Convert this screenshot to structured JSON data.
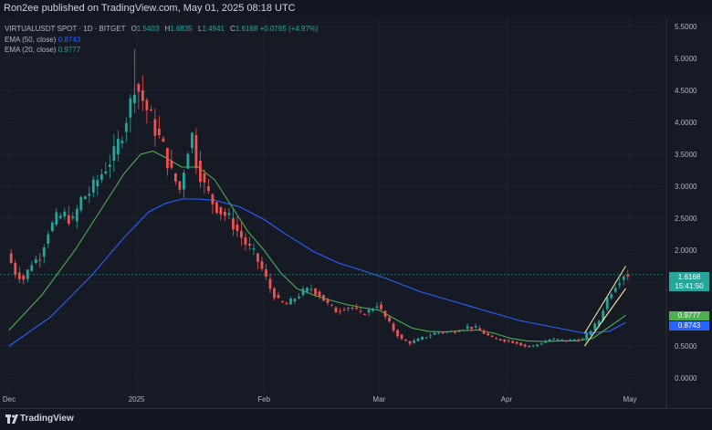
{
  "header": {
    "published_text": "Ron2ee published on TradingView.com, May 01, 2025 08:18 UTC"
  },
  "legend": {
    "symbol": "VIRTUALUSDT SPOT · 1D · BITGET",
    "ohlc": [
      {
        "k": "O",
        "v": "1.5403"
      },
      {
        "k": "H",
        "v": "1.6835"
      },
      {
        "k": "L",
        "v": "1.4941"
      },
      {
        "k": "C",
        "v": "1.6168"
      }
    ],
    "change": "+0.0765 (+4.97%)",
    "ema50_label": "EMA (50, close)",
    "ema50_value": "0.8743",
    "ema20_label": "EMA (20, close)",
    "ema20_value": "0.9777"
  },
  "badges": {
    "price": "1.6168",
    "countdown": "15:41:50",
    "ema20": "0.9777",
    "ema50": "0.8743"
  },
  "footer": {
    "brand": "TradingView"
  },
  "colors": {
    "up": "#26a69a",
    "down": "#ef5350",
    "ema20": "#4caf50",
    "ema50": "#2962ff",
    "channel": "#f5e6a3",
    "background": "#161a25"
  },
  "chart_data": {
    "type": "candlestick",
    "y_ticks": [
      "5.5000",
      "5.0000",
      "4.5000",
      "4.0000",
      "3.5000",
      "3.0000",
      "2.5000",
      "2.0000",
      "1.5000",
      "1.0000",
      "0.5000",
      "0.0000"
    ],
    "ylim": [
      0,
      5.5
    ],
    "x_ticks": [
      {
        "label": "Dec",
        "day": 0
      },
      {
        "label": "2025",
        "day": 31
      },
      {
        "label": "Feb",
        "day": 62
      },
      {
        "label": "Mar",
        "day": 90
      },
      {
        "label": "Apr",
        "day": 121
      },
      {
        "label": "May",
        "day": 151
      }
    ],
    "close_path": [
      [
        0,
        1.95
      ],
      [
        2,
        1.65
      ],
      [
        4,
        1.55
      ],
      [
        6,
        1.8
      ],
      [
        8,
        1.9
      ],
      [
        10,
        2.3
      ],
      [
        12,
        2.5
      ],
      [
        14,
        2.55
      ],
      [
        16,
        2.45
      ],
      [
        18,
        2.8
      ],
      [
        20,
        2.9
      ],
      [
        22,
        3.1
      ],
      [
        24,
        3.3
      ],
      [
        26,
        3.5
      ],
      [
        28,
        3.85
      ],
      [
        30,
        4.3
      ],
      [
        31,
        4.6
      ],
      [
        32,
        4.5
      ],
      [
        34,
        4.2
      ],
      [
        36,
        3.9
      ],
      [
        38,
        3.6
      ],
      [
        40,
        3.2
      ],
      [
        42,
        2.95
      ],
      [
        44,
        3.6
      ],
      [
        45,
        3.8
      ],
      [
        46,
        3.4
      ],
      [
        48,
        3.0
      ],
      [
        50,
        2.75
      ],
      [
        52,
        2.6
      ],
      [
        54,
        2.5
      ],
      [
        56,
        2.3
      ],
      [
        58,
        2.1
      ],
      [
        60,
        1.95
      ],
      [
        62,
        1.7
      ],
      [
        64,
        1.4
      ],
      [
        66,
        1.2
      ],
      [
        68,
        1.15
      ],
      [
        70,
        1.25
      ],
      [
        72,
        1.35
      ],
      [
        74,
        1.4
      ],
      [
        76,
        1.3
      ],
      [
        78,
        1.15
      ],
      [
        80,
        1.05
      ],
      [
        82,
        1.1
      ],
      [
        84,
        1.1
      ],
      [
        86,
        1.0
      ],
      [
        88,
        1.05
      ],
      [
        90,
        1.15
      ],
      [
        92,
        0.95
      ],
      [
        94,
        0.75
      ],
      [
        96,
        0.6
      ],
      [
        98,
        0.55
      ],
      [
        100,
        0.6
      ],
      [
        102,
        0.65
      ],
      [
        104,
        0.7
      ],
      [
        106,
        0.72
      ],
      [
        108,
        0.72
      ],
      [
        110,
        0.75
      ],
      [
        112,
        0.8
      ],
      [
        114,
        0.78
      ],
      [
        116,
        0.7
      ],
      [
        118,
        0.62
      ],
      [
        120,
        0.6
      ],
      [
        122,
        0.58
      ],
      [
        124,
        0.55
      ],
      [
        126,
        0.5
      ],
      [
        128,
        0.5
      ],
      [
        130,
        0.55
      ],
      [
        132,
        0.6
      ],
      [
        134,
        0.6
      ],
      [
        136,
        0.58
      ],
      [
        138,
        0.6
      ],
      [
        140,
        0.6
      ],
      [
        142,
        0.75
      ],
      [
        144,
        0.9
      ],
      [
        146,
        1.25
      ],
      [
        148,
        1.45
      ],
      [
        150,
        1.62
      ]
    ],
    "ema20_path": [
      [
        0,
        0.75
      ],
      [
        8,
        1.3
      ],
      [
        16,
        2.0
      ],
      [
        22,
        2.6
      ],
      [
        28,
        3.2
      ],
      [
        32,
        3.5
      ],
      [
        35,
        3.55
      ],
      [
        38,
        3.45
      ],
      [
        42,
        3.3
      ],
      [
        46,
        3.3
      ],
      [
        50,
        3.1
      ],
      [
        54,
        2.7
      ],
      [
        58,
        2.3
      ],
      [
        62,
        2.0
      ],
      [
        66,
        1.65
      ],
      [
        70,
        1.4
      ],
      [
        74,
        1.3
      ],
      [
        78,
        1.22
      ],
      [
        82,
        1.15
      ],
      [
        86,
        1.1
      ],
      [
        90,
        1.06
      ],
      [
        94,
        0.92
      ],
      [
        98,
        0.78
      ],
      [
        102,
        0.73
      ],
      [
        106,
        0.72
      ],
      [
        110,
        0.74
      ],
      [
        114,
        0.75
      ],
      [
        118,
        0.7
      ],
      [
        122,
        0.62
      ],
      [
        126,
        0.58
      ],
      [
        130,
        0.57
      ],
      [
        134,
        0.58
      ],
      [
        138,
        0.58
      ],
      [
        142,
        0.62
      ],
      [
        146,
        0.8
      ],
      [
        150,
        0.98
      ]
    ],
    "ema50_path": [
      [
        0,
        0.5
      ],
      [
        10,
        0.95
      ],
      [
        20,
        1.6
      ],
      [
        28,
        2.2
      ],
      [
        34,
        2.6
      ],
      [
        38,
        2.73
      ],
      [
        42,
        2.8
      ],
      [
        46,
        2.8
      ],
      [
        50,
        2.78
      ],
      [
        56,
        2.68
      ],
      [
        62,
        2.48
      ],
      [
        68,
        2.22
      ],
      [
        74,
        1.98
      ],
      [
        80,
        1.8
      ],
      [
        86,
        1.68
      ],
      [
        92,
        1.55
      ],
      [
        100,
        1.35
      ],
      [
        108,
        1.2
      ],
      [
        116,
        1.05
      ],
      [
        124,
        0.9
      ],
      [
        132,
        0.8
      ],
      [
        140,
        0.7
      ],
      [
        146,
        0.73
      ],
      [
        150,
        0.87
      ]
    ],
    "channel_lines": [
      {
        "from": [
          140,
          0.5
        ],
        "to": [
          150,
          1.4
        ]
      },
      {
        "from": [
          140,
          0.7
        ],
        "to": [
          150,
          1.75
        ]
      }
    ],
    "last_price": 1.6168
  }
}
